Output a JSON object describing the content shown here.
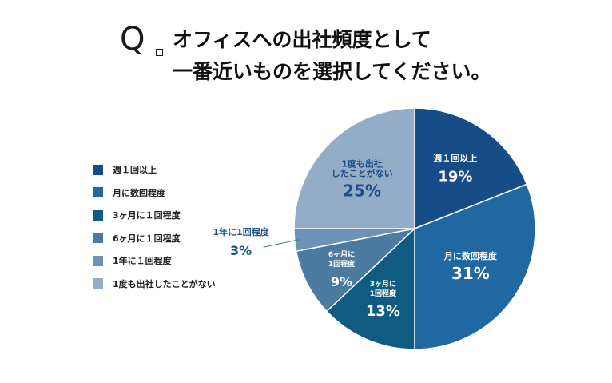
{
  "question": {
    "mark": "Q",
    "line1": "オフィスへの出社頻度として",
    "line2": "一番近いものを選択してください。"
  },
  "chart_data": {
    "type": "pie",
    "title": "オフィスへの出社頻度として一番近いものを選択してください。",
    "start_angle_deg": 0,
    "direction": "clockwise",
    "slices": [
      {
        "label": "週１回以上",
        "chart_label": [
          "週１回以上"
        ],
        "value": 19,
        "value_label": "19%",
        "color": "#164c87",
        "label_color": "#ffffff"
      },
      {
        "label": "月に数回程度",
        "chart_label": [
          "月に数回程度"
        ],
        "value": 31,
        "value_label": "31%",
        "color": "#2068a2",
        "label_color": "#ffffff"
      },
      {
        "label": "3ヶ月に１回程度",
        "chart_label": [
          "3ヶ月に",
          "1回程度"
        ],
        "value": 13,
        "value_label": "13%",
        "color": "#0f5b82",
        "label_color": "#ffffff"
      },
      {
        "label": "6ヶ月に１回程度",
        "chart_label": [
          "6ヶ月に",
          "1回程度"
        ],
        "value": 9,
        "value_label": "9%",
        "color": "#4c7aa1",
        "label_color": "#ffffff"
      },
      {
        "label": "1年に１回程度",
        "chart_label": [
          "1年に1回程度"
        ],
        "value": 3,
        "value_label": "3%",
        "color": "#6b93b7",
        "label_color": "#1c4f86",
        "outside": true
      },
      {
        "label": "1度も出社したことがない",
        "chart_label": [
          "1度も出社",
          "したことがない"
        ],
        "value": 25,
        "value_label": "25%",
        "color": "#93adc8",
        "label_color": "#1c4f86"
      }
    ]
  }
}
